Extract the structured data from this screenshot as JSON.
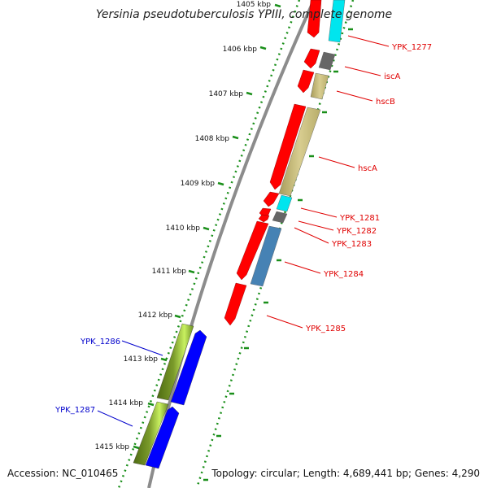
{
  "title": "Yersinia pseudotuberculosis YPIII, complete genome",
  "footer": {
    "accession": "Accession: NC_010465",
    "summary": "Topology: circular; Length: 4,689,441 bp; Genes: 4,290"
  },
  "colors": {
    "backbone": "#8c8c8c",
    "ruler": "#1a8f1a",
    "feature_label_red": "#e00000",
    "feature_label_blue": "#0000cc"
  },
  "ruler": {
    "unit": "kbp",
    "ticks": [
      "1405 kbp",
      "1406 kbp",
      "1407 kbp",
      "1408 kbp",
      "1409 kbp",
      "1410 kbp",
      "1411 kbp",
      "1412 kbp",
      "1413 kbp",
      "1414 kbp",
      "1415 kbp"
    ]
  },
  "features": [
    {
      "label": "YPK_1277",
      "strand": "forward",
      "colors": [
        "#ff0000",
        "#00e5ee"
      ]
    },
    {
      "label": "iscA",
      "strand": "forward",
      "colors": [
        "#ff0000",
        "#666666"
      ]
    },
    {
      "label": "hscB",
      "strand": "forward",
      "colors": [
        "#ff0000",
        "#c8bd7a"
      ]
    },
    {
      "label": "hscA",
      "strand": "forward",
      "colors": [
        "#ff0000",
        "#c8bd7a"
      ]
    },
    {
      "label": "YPK_1281",
      "strand": "forward",
      "colors": [
        "#ff0000",
        "#00e5ee"
      ]
    },
    {
      "label": "YPK_1282",
      "strand": "forward",
      "colors": [
        "#ff0000",
        "#666666"
      ]
    },
    {
      "label": "YPK_1283",
      "strand": "forward",
      "colors": [
        "#ff0000",
        "#666666"
      ]
    },
    {
      "label": "YPK_1284",
      "strand": "forward",
      "colors": [
        "#ff0000",
        "#4682b4"
      ]
    },
    {
      "label": "YPK_1285",
      "strand": "forward",
      "colors": [
        "#ff0000"
      ]
    },
    {
      "label": "YPK_1286",
      "strand": "reverse",
      "colors": [
        "#6b8e23",
        "#0000ff"
      ]
    },
    {
      "label": "YPK_1287",
      "strand": "reverse",
      "colors": [
        "#6b8e23",
        "#0000ff"
      ]
    }
  ]
}
